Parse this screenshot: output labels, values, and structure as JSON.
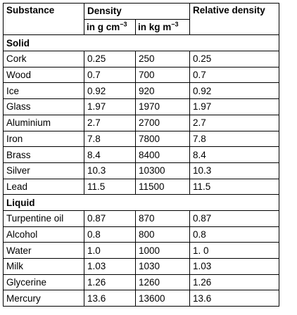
{
  "headers": {
    "substance": "Substance",
    "density": "Density",
    "relative_density": "Relative density",
    "unit_g_cm3": "in g cm",
    "unit_kg_m3": "in kg m",
    "exponent": "−3"
  },
  "sections": [
    {
      "label": "Solid",
      "rows": [
        {
          "name": "Cork",
          "g_cm3": "0.25",
          "kg_m3": "250",
          "relative": "0.25"
        },
        {
          "name": "Wood",
          "g_cm3": "0.7",
          "kg_m3": "700",
          "relative": "0.7"
        },
        {
          "name": "Ice",
          "g_cm3": "0.92",
          "kg_m3": "920",
          "relative": "0.92"
        },
        {
          "name": "Glass",
          "g_cm3": "1.97",
          "kg_m3": "1970",
          "relative": "1.97"
        },
        {
          "name": "Aluminium",
          "g_cm3": "2.7",
          "kg_m3": "2700",
          "relative": "2.7"
        },
        {
          "name": "Iron",
          "g_cm3": "7.8",
          "kg_m3": "7800",
          "relative": "7.8"
        },
        {
          "name": "Brass",
          "g_cm3": "8.4",
          "kg_m3": "8400",
          "relative": "8.4"
        },
        {
          "name": "Silver",
          "g_cm3": "10.3",
          "kg_m3": "10300",
          "relative": "10.3"
        },
        {
          "name": "Lead",
          "g_cm3": "11.5",
          "kg_m3": "11500",
          "relative": "11.5"
        }
      ]
    },
    {
      "label": "Liquid",
      "rows": [
        {
          "name": "Turpentine oil",
          "g_cm3": "0.87",
          "kg_m3": "870",
          "relative": "0.87"
        },
        {
          "name": "Alcohol",
          "g_cm3": "0.8",
          "kg_m3": "800",
          "relative": "0.8"
        },
        {
          "name": "Water",
          "g_cm3": "1.0",
          "kg_m3": "1000",
          "relative": "1. 0"
        },
        {
          "name": "Milk",
          "g_cm3": "1.03",
          "kg_m3": "1030",
          "relative": "1.03"
        },
        {
          "name": "Glycerine",
          "g_cm3": "1.26",
          "kg_m3": "1260",
          "relative": "1.26"
        },
        {
          "name": "Mercury",
          "g_cm3": "13.6",
          "kg_m3": "13600",
          "relative": "13.6"
        }
      ]
    }
  ]
}
